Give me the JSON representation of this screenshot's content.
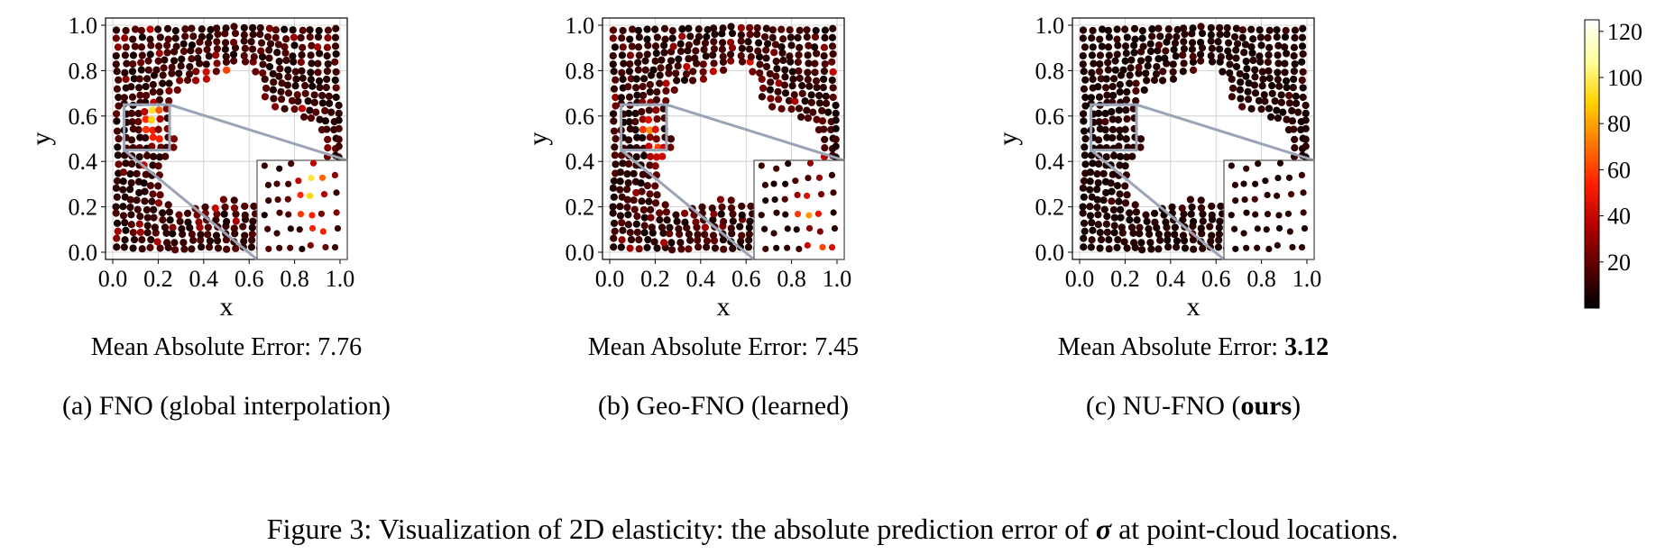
{
  "figure": {
    "caption_prefix": "Figure 3: Visualization of 2D elasticity: the absolute prediction error of ",
    "caption_symbol": "σ",
    "caption_suffix": " at point-cloud locations."
  },
  "colorbar": {
    "colormap": "hot",
    "ticks": [
      "20",
      "40",
      "60",
      "80",
      "100",
      "120"
    ],
    "tick_values": [
      20,
      40,
      60,
      80,
      100,
      120
    ],
    "range": [
      0,
      125
    ],
    "colors": [
      "#000000",
      "#5a0000",
      "#b40000",
      "#ff1e00",
      "#ff7800",
      "#ffd200",
      "#ffff9b",
      "#ffffff"
    ]
  },
  "chart_data": [
    {
      "type": "scatter",
      "panel": "a",
      "subtitle": "(a) FNO (global interpolation)",
      "mae_label": "Mean Absolute Error: ",
      "mae_value": "7.76",
      "mae_bold": false,
      "xlabel": "x",
      "ylabel": "y",
      "xlim": [
        0,
        1
      ],
      "ylim": [
        0,
        1
      ],
      "xticks": [
        "0.0",
        "0.2",
        "0.4",
        "0.6",
        "0.8",
        "1.0"
      ],
      "yticks": [
        "0.0",
        "0.2",
        "0.4",
        "0.6",
        "0.8",
        "1.0"
      ],
      "grid": true,
      "inset_region": {
        "x": [
          0.05,
          0.25
        ],
        "y": [
          0.45,
          0.65
        ]
      },
      "error_level": 1.0,
      "seed": 11,
      "hotspots": [
        {
          "x": 0.18,
          "y": 0.62,
          "value": 110
        },
        {
          "x": 0.17,
          "y": 0.58,
          "value": 95
        },
        {
          "x": 0.16,
          "y": 0.55,
          "value": 80
        },
        {
          "x": 0.19,
          "y": 0.5,
          "value": 70
        },
        {
          "x": 0.5,
          "y": 0.79,
          "value": 75
        },
        {
          "x": 0.4,
          "y": 0.78,
          "value": 60
        },
        {
          "x": 0.88,
          "y": 0.55,
          "value": 55
        }
      ]
    },
    {
      "type": "scatter",
      "panel": "b",
      "subtitle": "(b) Geo-FNO (learned)",
      "mae_label": "Mean Absolute Error: ",
      "mae_value": "7.45",
      "mae_bold": false,
      "xlabel": "x",
      "ylabel": "y",
      "xlim": [
        0,
        1
      ],
      "ylim": [
        0,
        1
      ],
      "xticks": [
        "0.0",
        "0.2",
        "0.4",
        "0.6",
        "0.8",
        "1.0"
      ],
      "yticks": [
        "0.0",
        "0.2",
        "0.4",
        "0.6",
        "0.8",
        "1.0"
      ],
      "grid": true,
      "inset_region": {
        "x": [
          0.05,
          0.25
        ],
        "y": [
          0.45,
          0.65
        ]
      },
      "error_level": 0.95,
      "seed": 23,
      "hotspots": [
        {
          "x": 0.17,
          "y": 0.55,
          "value": 100
        },
        {
          "x": 0.2,
          "y": 0.45,
          "value": 85
        },
        {
          "x": 0.45,
          "y": 0.77,
          "value": 70
        },
        {
          "x": 0.23,
          "y": 0.4,
          "value": 65
        },
        {
          "x": 0.86,
          "y": 0.45,
          "value": 50
        }
      ]
    },
    {
      "type": "scatter",
      "panel": "c",
      "subtitle_prefix": "(c) NU-FNO (",
      "subtitle_bold": "ours",
      "subtitle_suffix": ")",
      "mae_label": "Mean Absolute Error: ",
      "mae_value": "3.12",
      "mae_bold": true,
      "xlabel": "x",
      "ylabel": "y",
      "xlim": [
        0,
        1
      ],
      "ylim": [
        0,
        1
      ],
      "xticks": [
        "0.0",
        "0.2",
        "0.4",
        "0.6",
        "0.8",
        "1.0"
      ],
      "yticks": [
        "0.0",
        "0.2",
        "0.4",
        "0.6",
        "0.8",
        "1.0"
      ],
      "grid": true,
      "inset_region": {
        "x": [
          0.05,
          0.25
        ],
        "y": [
          0.45,
          0.65
        ]
      },
      "error_level": 0.4,
      "seed": 37,
      "hotspots": [
        {
          "x": 0.45,
          "y": 0.72,
          "value": 35
        },
        {
          "x": 0.9,
          "y": 0.5,
          "value": 30
        }
      ]
    }
  ]
}
